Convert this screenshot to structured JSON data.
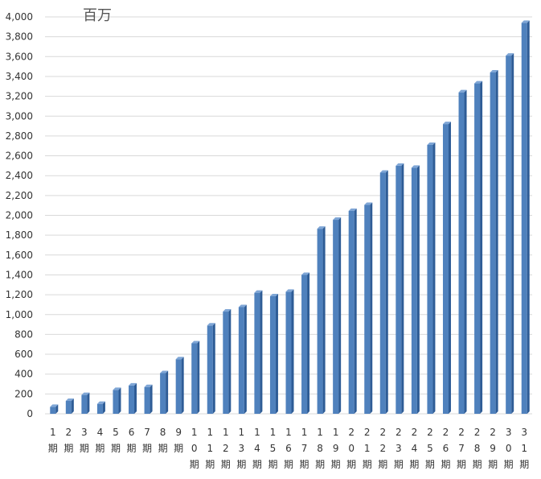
{
  "chart_data": {
    "type": "bar",
    "unit_label": "百万",
    "categories": [
      "1期",
      "2期",
      "3期",
      "4期",
      "5期",
      "6期",
      "7期",
      "8期",
      "9期",
      "10期",
      "11期",
      "12期",
      "13期",
      "14期",
      "15期",
      "16期",
      "17期",
      "18期",
      "19期",
      "20期",
      "21期",
      "22期",
      "23期",
      "24期",
      "25期",
      "26期",
      "27期",
      "28期",
      "29期",
      "30期",
      "31期"
    ],
    "values": [
      70,
      130,
      190,
      100,
      240,
      285,
      270,
      410,
      550,
      710,
      890,
      1030,
      1075,
      1220,
      1185,
      1230,
      1400,
      1865,
      1955,
      2045,
      2105,
      2430,
      2500,
      2480,
      2710,
      2920,
      3240,
      3330,
      3440,
      3610,
      3940
    ],
    "ylim": [
      0,
      4000
    ],
    "yticks": [
      0,
      200,
      400,
      600,
      800,
      1000,
      1200,
      1400,
      1600,
      1800,
      2000,
      2200,
      2400,
      2600,
      2800,
      3000,
      3200,
      3400,
      3600,
      3800,
      4000
    ],
    "ytick_labels": [
      "0",
      "200",
      "400",
      "600",
      "800",
      "1,000",
      "1,200",
      "1,400",
      "1,600",
      "1,800",
      "2,000",
      "2,200",
      "2,400",
      "2,600",
      "2,800",
      "3,000",
      "3,200",
      "3,400",
      "3,600",
      "3,800",
      "4,000"
    ],
    "bar_color": "#4F81BD",
    "bar_shade_color": "#2E5C96",
    "grid": true,
    "gridline_color": "#D9D9D9",
    "legend": false
  }
}
